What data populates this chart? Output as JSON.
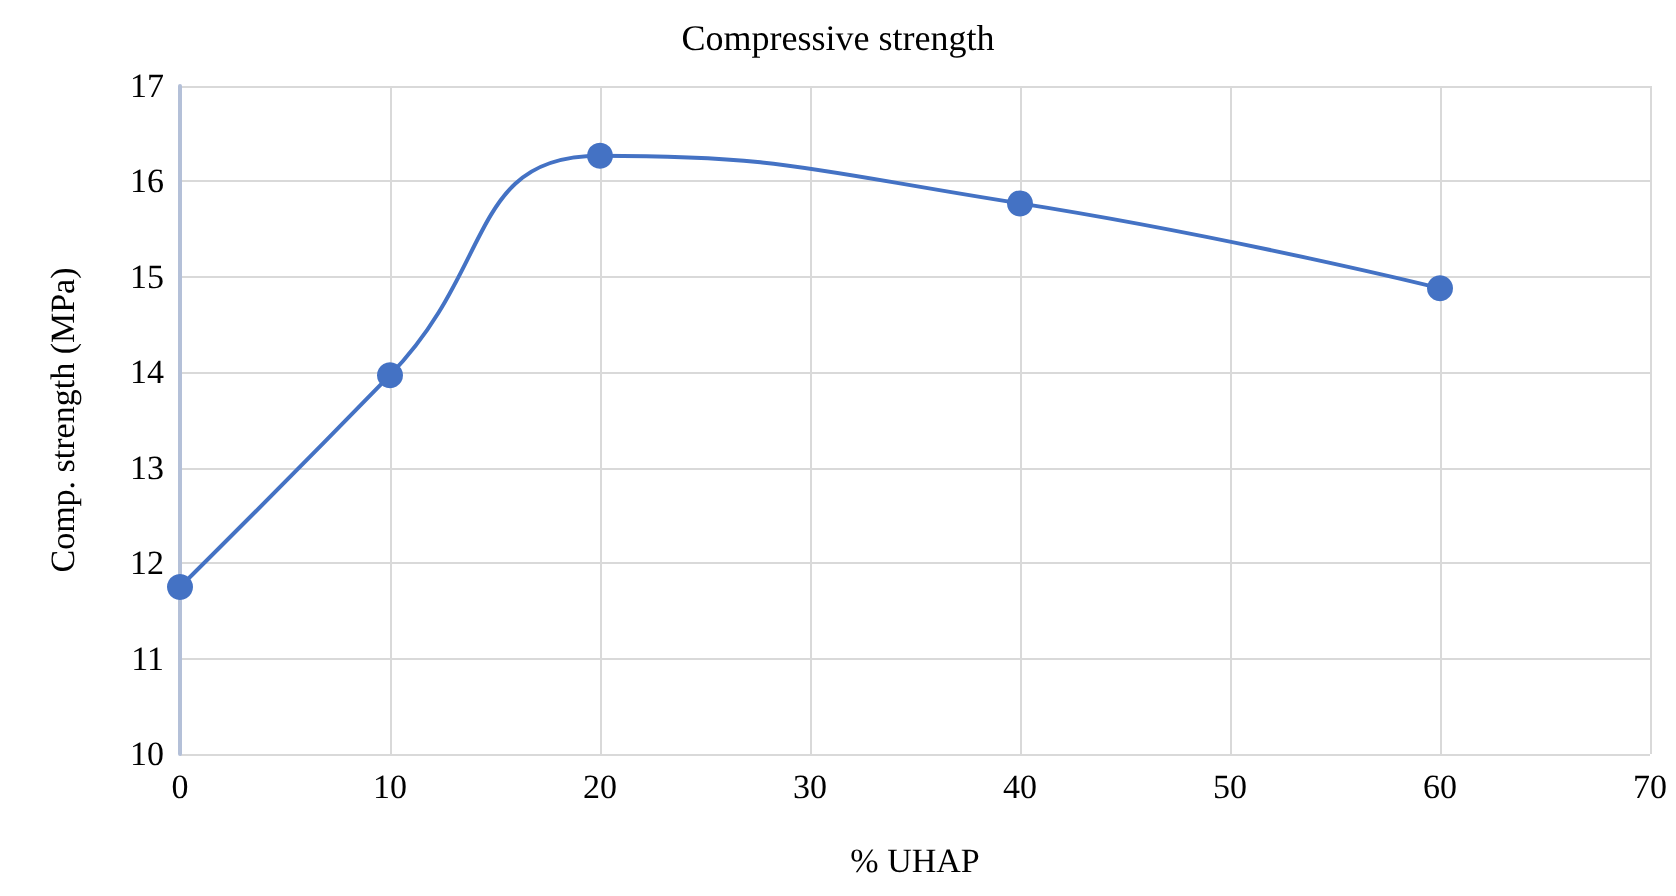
{
  "chart_data": {
    "type": "line",
    "title": "Compressive strength",
    "xlabel": "% UHAP",
    "ylabel": "Comp. strength (MPa)",
    "x": [
      0,
      10,
      20,
      40,
      60
    ],
    "series": [
      {
        "color": "#4472c4",
        "values": [
          11.75,
          13.97,
          16.27,
          15.77,
          14.88
        ]
      }
    ],
    "xlim": [
      0,
      70
    ],
    "xticks": [
      0,
      10,
      20,
      30,
      40,
      50,
      60,
      70
    ],
    "ylim": [
      10,
      17
    ],
    "yticks": [
      10,
      11,
      12,
      13,
      14,
      15,
      16,
      17
    ],
    "grid": true,
    "marker": "circle",
    "line_style": "solid"
  }
}
